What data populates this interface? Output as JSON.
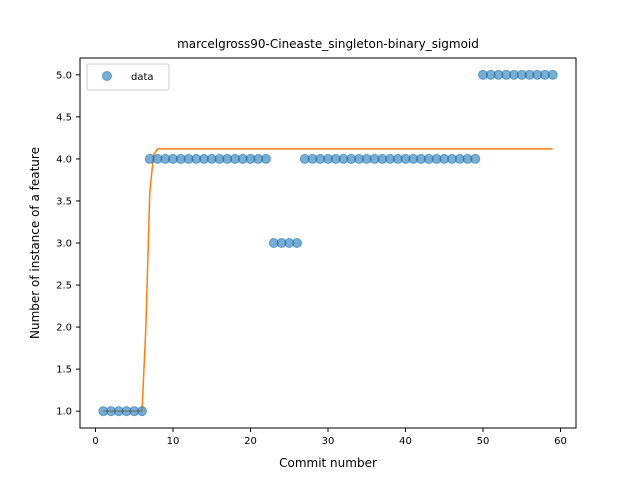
{
  "chart_data": {
    "type": "scatter",
    "title": "marcelgross90-Cineaste_singleton-binary_sigmoid",
    "xlabel": "Commit number",
    "ylabel": "Number of instance of a feature",
    "xlim": [
      -2,
      62
    ],
    "ylim": [
      0.8,
      5.2
    ],
    "xticks": [
      0,
      10,
      20,
      30,
      40,
      50,
      60
    ],
    "yticks": [
      1.0,
      1.5,
      2.0,
      2.5,
      3.0,
      3.5,
      4.0,
      4.5,
      5.0
    ],
    "legend": {
      "position": "top-left",
      "entries": [
        "data"
      ]
    },
    "colors": {
      "data": "#1f77b4",
      "fit": "#ff7f0e"
    },
    "series": [
      {
        "name": "data",
        "kind": "scatter",
        "x": [
          1,
          2,
          3,
          4,
          5,
          6,
          7,
          8,
          9,
          10,
          11,
          12,
          13,
          14,
          15,
          16,
          17,
          18,
          19,
          20,
          21,
          22,
          23,
          24,
          25,
          26,
          27,
          28,
          29,
          30,
          31,
          32,
          33,
          34,
          35,
          36,
          37,
          38,
          39,
          40,
          41,
          42,
          43,
          44,
          45,
          46,
          47,
          48,
          49,
          50,
          51,
          52,
          53,
          54,
          55,
          56,
          57,
          58,
          59
        ],
        "y": [
          1,
          1,
          1,
          1,
          1,
          1,
          4,
          4,
          4,
          4,
          4,
          4,
          4,
          4,
          4,
          4,
          4,
          4,
          4,
          4,
          4,
          4,
          3,
          3,
          3,
          3,
          4,
          4,
          4,
          4,
          4,
          4,
          4,
          4,
          4,
          4,
          4,
          4,
          4,
          4,
          4,
          4,
          4,
          4,
          4,
          4,
          4,
          4,
          4,
          5,
          5,
          5,
          5,
          5,
          5,
          5,
          5,
          5,
          5
        ]
      },
      {
        "kind": "line",
        "x": [
          1,
          6,
          6.5,
          7,
          7.5,
          8,
          59
        ],
        "y": [
          1.0,
          1.0,
          2.0,
          3.6,
          4.05,
          4.12,
          4.12
        ]
      }
    ]
  }
}
